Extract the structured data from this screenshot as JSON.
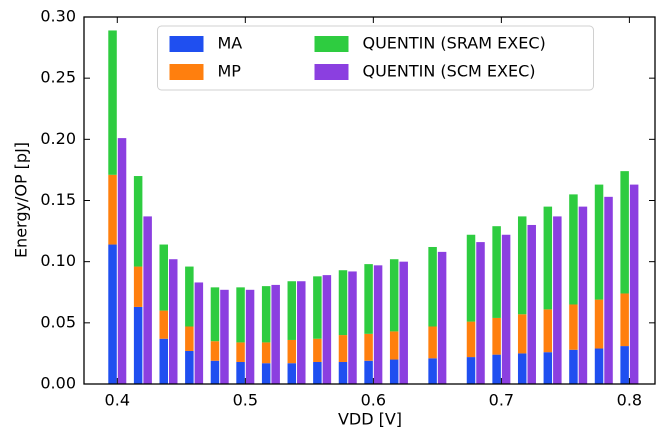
{
  "chart_data": {
    "type": "bar",
    "xlabel": "VDD [V]",
    "ylabel": "Energy/OP [pJ]",
    "x": [
      0.4,
      0.42,
      0.44,
      0.46,
      0.48,
      0.5,
      0.52,
      0.54,
      0.56,
      0.58,
      0.6,
      0.62,
      0.65,
      0.68,
      0.7,
      0.72,
      0.74,
      0.76,
      0.78,
      0.8
    ],
    "series": [
      {
        "name": "MA",
        "color": "#1f4ff0",
        "values": [
          0.114,
          0.063,
          0.037,
          0.027,
          0.019,
          0.018,
          0.017,
          0.017,
          0.018,
          0.018,
          0.019,
          0.02,
          0.021,
          0.022,
          0.024,
          0.025,
          0.026,
          0.028,
          0.029,
          0.031
        ]
      },
      {
        "name": "MP",
        "color": "#ff7f0e",
        "values": [
          0.057,
          0.033,
          0.023,
          0.02,
          0.016,
          0.016,
          0.017,
          0.019,
          0.019,
          0.022,
          0.022,
          0.023,
          0.026,
          0.029,
          0.03,
          0.032,
          0.035,
          0.037,
          0.04,
          0.043
        ]
      },
      {
        "name": "QUENTIN (SRAM EXEC)",
        "color": "#2ecc40",
        "values": [
          0.118,
          0.074,
          0.054,
          0.049,
          0.044,
          0.045,
          0.046,
          0.048,
          0.051,
          0.053,
          0.057,
          0.059,
          0.065,
          0.071,
          0.075,
          0.08,
          0.084,
          0.09,
          0.094,
          0.1
        ]
      },
      {
        "name": "QUENTIN (SCM EXEC)",
        "color": "#8b3fe0",
        "values": [
          0.201,
          0.137,
          0.102,
          0.083,
          0.077,
          0.077,
          0.081,
          0.084,
          0.089,
          0.092,
          0.097,
          0.1,
          0.108,
          0.116,
          0.122,
          0.13,
          0.137,
          0.145,
          0.153,
          0.163
        ]
      }
    ],
    "xlim": [
      0.374,
      0.82
    ],
    "xticks": [
      0.4,
      0.5,
      0.6,
      0.7,
      0.8
    ],
    "ylim": [
      0,
      0.3
    ],
    "yticks": [
      {
        "value": 0,
        "label": "0.00"
      },
      {
        "value": 0.05,
        "label": "0.05"
      },
      {
        "value": 0.1,
        "label": "0.10"
      },
      {
        "value": 0.15,
        "label": "0.15"
      },
      {
        "value": 0.2,
        "label": "0.20"
      },
      {
        "value": 0.25,
        "label": "0.25"
      },
      {
        "value": 0.3,
        "label": "0.30"
      }
    ],
    "grid": false,
    "legend": "upper center"
  }
}
